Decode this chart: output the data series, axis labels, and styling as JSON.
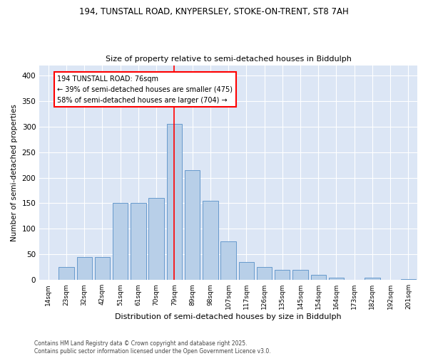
{
  "title1": "194, TUNSTALL ROAD, KNYPERSLEY, STOKE-ON-TRENT, ST8 7AH",
  "title2": "Size of property relative to semi-detached houses in Biddulph",
  "xlabel": "Distribution of semi-detached houses by size in Biddulph",
  "ylabel": "Number of semi-detached properties",
  "categories": [
    "14sqm",
    "23sqm",
    "32sqm",
    "42sqm",
    "51sqm",
    "61sqm",
    "70sqm",
    "79sqm",
    "89sqm",
    "98sqm",
    "107sqm",
    "117sqm",
    "126sqm",
    "135sqm",
    "145sqm",
    "154sqm",
    "164sqm",
    "173sqm",
    "182sqm",
    "192sqm",
    "201sqm"
  ],
  "values": [
    0,
    25,
    45,
    45,
    150,
    150,
    160,
    305,
    215,
    155,
    75,
    35,
    25,
    20,
    20,
    10,
    5,
    0,
    5,
    0,
    2
  ],
  "bar_color": "#b8cfe8",
  "bar_edge_color": "#6699cc",
  "bg_color": "#dce6f5",
  "vline_color": "red",
  "annotation_title": "194 TUNSTALL ROAD: 76sqm",
  "annotation_line1": "← 39% of semi-detached houses are smaller (475)",
  "annotation_line2": "58% of semi-detached houses are larger (704) →",
  "annotation_box_color": "white",
  "annotation_box_edge": "red",
  "footer": "Contains HM Land Registry data © Crown copyright and database right 2025.\nContains public sector information licensed under the Open Government Licence v3.0.",
  "ylim": [
    0,
    420
  ],
  "yticks": [
    0,
    50,
    100,
    150,
    200,
    250,
    300,
    350,
    400
  ]
}
